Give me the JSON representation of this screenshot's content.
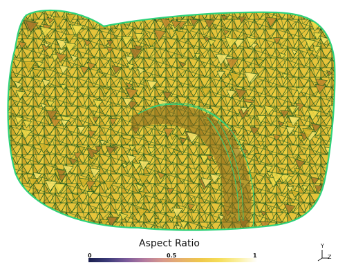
{
  "legend": {
    "title": "Aspect Ratio",
    "ticks": [
      "0",
      "0.5",
      "1"
    ],
    "colormap": [
      "#1a1f4e",
      "#3b3a78",
      "#7a5a9a",
      "#b47b9f",
      "#d99a8a",
      "#e7b26a",
      "#f0c94a",
      "#f6de5a",
      "#fbf0a0",
      "#ffffff"
    ]
  },
  "axes": {
    "y_label": "Y",
    "z_label": "Z"
  },
  "colors": {
    "mesh_edge": "#1e5a1e",
    "mesh_fill_main": "#d9b52a",
    "mesh_fill_light": "#f2dc4a",
    "mesh_fill_dark": "#a8782a",
    "outline": "#2fd17a"
  }
}
